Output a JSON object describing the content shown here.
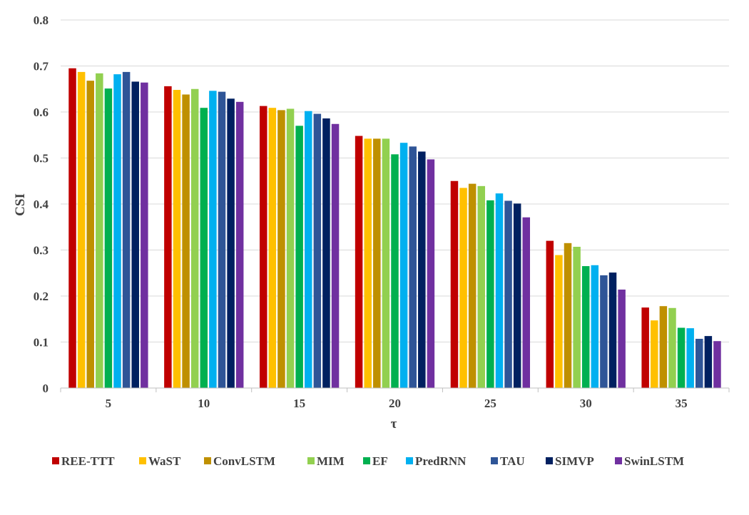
{
  "chart_data": {
    "type": "bar",
    "xlabel": "τ",
    "ylabel": "CSI",
    "ylim": [
      0,
      0.8
    ],
    "yticks": [
      "0",
      "0.1",
      "0.2",
      "0.3",
      "0.4",
      "0.5",
      "0.6",
      "0.7",
      "0.8"
    ],
    "grid": true,
    "legend_position": "bottom",
    "categories": [
      "5",
      "10",
      "15",
      "20",
      "25",
      "30",
      "35"
    ],
    "series": [
      {
        "name": "REE-TTT",
        "color": "#C00000",
        "values": [
          0.695,
          0.656,
          0.613,
          0.548,
          0.45,
          0.32,
          0.175
        ]
      },
      {
        "name": "WaST",
        "color": "#FFC000",
        "values": [
          0.687,
          0.648,
          0.609,
          0.542,
          0.435,
          0.289,
          0.147
        ]
      },
      {
        "name": "ConvLSTM",
        "color": "#BF9000",
        "values": [
          0.668,
          0.638,
          0.604,
          0.542,
          0.444,
          0.315,
          0.178
        ]
      },
      {
        "name": "MIM",
        "color": "#92D050",
        "values": [
          0.684,
          0.65,
          0.607,
          0.542,
          0.439,
          0.307,
          0.174
        ]
      },
      {
        "name": "EF",
        "color": "#00B050",
        "values": [
          0.651,
          0.609,
          0.57,
          0.508,
          0.408,
          0.265,
          0.131
        ]
      },
      {
        "name": "PredRNN",
        "color": "#00B0F0",
        "values": [
          0.682,
          0.646,
          0.602,
          0.533,
          0.423,
          0.267,
          0.13
        ]
      },
      {
        "name": "TAU",
        "color": "#2F5597",
        "values": [
          0.687,
          0.644,
          0.596,
          0.525,
          0.407,
          0.245,
          0.107
        ]
      },
      {
        "name": "SIMVP",
        "color": "#002060",
        "values": [
          0.666,
          0.629,
          0.586,
          0.514,
          0.401,
          0.251,
          0.113
        ]
      },
      {
        "name": "SwinLSTM",
        "color": "#7030A0",
        "values": [
          0.664,
          0.622,
          0.574,
          0.497,
          0.371,
          0.214,
          0.102
        ]
      }
    ]
  }
}
